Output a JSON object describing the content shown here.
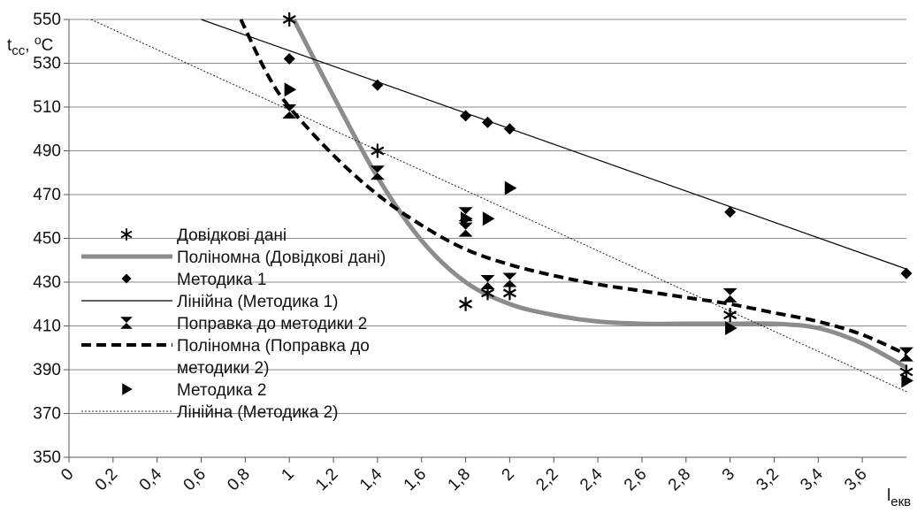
{
  "chart_data": {
    "type": "scatter",
    "title": "",
    "ylabel": "t",
    "ylabel_sub": "cc",
    "ylabel_unit": ", ",
    "ylabel_deg": "o",
    "ylabel_c": "C",
    "xlabel": "l",
    "xlabel_sub": "екв",
    "xlim": [
      0,
      3.8
    ],
    "ylim": [
      350,
      550
    ],
    "x_ticks": [
      "0",
      "0,2",
      "0,4",
      "0,6",
      "0,8",
      "1",
      "1,2",
      "1,4",
      "1,6",
      "1,8",
      "2",
      "2,2",
      "2,4",
      "2,6",
      "2,8",
      "3",
      "3,2",
      "3,4",
      "3,6"
    ],
    "y_ticks": [
      "350",
      "370",
      "390",
      "410",
      "430",
      "450",
      "470",
      "490",
      "510",
      "530",
      "550"
    ],
    "grid": "horizontal",
    "legend_position": "left-bottom inside",
    "series": [
      {
        "name": "Довідкові дані",
        "kind": "markers",
        "marker": "asterisk",
        "color": "#000000",
        "points": [
          [
            1.0,
            550
          ],
          [
            1.4,
            490
          ],
          [
            1.8,
            420
          ],
          [
            1.9,
            425
          ],
          [
            2.0,
            425
          ],
          [
            3.0,
            415
          ],
          [
            3.8,
            389
          ]
        ]
      },
      {
        "name": "Поліномна (Довідкові дані)",
        "kind": "curve",
        "style": "thick-gray",
        "color": "#8c8c8c",
        "points": [
          [
            1.02,
            550
          ],
          [
            1.2,
            515
          ],
          [
            1.4,
            478
          ],
          [
            1.6,
            449
          ],
          [
            1.8,
            430
          ],
          [
            2.0,
            420
          ],
          [
            2.2,
            415
          ],
          [
            2.4,
            412
          ],
          [
            2.6,
            411
          ],
          [
            2.8,
            411
          ],
          [
            3.0,
            411
          ],
          [
            3.2,
            411
          ],
          [
            3.4,
            409
          ],
          [
            3.6,
            402
          ],
          [
            3.8,
            391
          ]
        ]
      },
      {
        "name": "Методика 1",
        "kind": "markers",
        "marker": "diamond",
        "color": "#000000",
        "points": [
          [
            1.0,
            532
          ],
          [
            1.4,
            520
          ],
          [
            1.8,
            506
          ],
          [
            1.9,
            503
          ],
          [
            2.0,
            500
          ],
          [
            3.0,
            462
          ],
          [
            3.8,
            434
          ]
        ]
      },
      {
        "name": "Лінійна (Методика 1)",
        "kind": "line",
        "style": "thin-solid",
        "color": "#000000",
        "points": [
          [
            0.6,
            550
          ],
          [
            3.8,
            436
          ]
        ]
      },
      {
        "name": "Поправка до методики 2",
        "kind": "markers",
        "marker": "bowtie",
        "color": "#000000",
        "points": [
          [
            1.0,
            508
          ],
          [
            1.4,
            480
          ],
          [
            1.8,
            461
          ],
          [
            1.8,
            454
          ],
          [
            1.9,
            430
          ],
          [
            2.0,
            431
          ],
          [
            3.0,
            424
          ],
          [
            3.8,
            397
          ]
        ]
      },
      {
        "name": "Поліномна (Поправка до методики 2)",
        "kind": "curve",
        "style": "thick-dashed",
        "color": "#000000",
        "points": [
          [
            0.78,
            550
          ],
          [
            0.9,
            525
          ],
          [
            1.0,
            510
          ],
          [
            1.2,
            488
          ],
          [
            1.4,
            470
          ],
          [
            1.6,
            456
          ],
          [
            1.8,
            445
          ],
          [
            2.0,
            438
          ],
          [
            2.2,
            433
          ],
          [
            2.4,
            429
          ],
          [
            2.6,
            426
          ],
          [
            2.8,
            423
          ],
          [
            3.0,
            420
          ],
          [
            3.2,
            416
          ],
          [
            3.4,
            412
          ],
          [
            3.6,
            406
          ],
          [
            3.8,
            397
          ]
        ]
      },
      {
        "name": "Методика 2",
        "kind": "markers",
        "marker": "triangle-right",
        "color": "#000000",
        "points": [
          [
            1.0,
            518
          ],
          [
            1.8,
            459
          ],
          [
            1.9,
            459
          ],
          [
            2.0,
            473
          ],
          [
            3.0,
            409
          ],
          [
            3.8,
            385
          ]
        ]
      },
      {
        "name": "Лінійна (Методика 2)",
        "kind": "line",
        "style": "thin-dotted",
        "color": "#000000",
        "points": [
          [
            0.1,
            550
          ],
          [
            3.8,
            380
          ]
        ]
      }
    ],
    "legend_lines": [
      [
        "Довідкові дані"
      ],
      [
        "Поліномна (Довідкові дані)"
      ],
      [
        "Методика 1"
      ],
      [
        "Лінійна (Методика 1)"
      ],
      [
        "Поправка до методики 2"
      ],
      [
        "Поліномна (Поправка до",
        "методики 2)"
      ],
      [
        "Методика 2"
      ],
      [
        "Лінійна (Методика 2)"
      ]
    ]
  }
}
